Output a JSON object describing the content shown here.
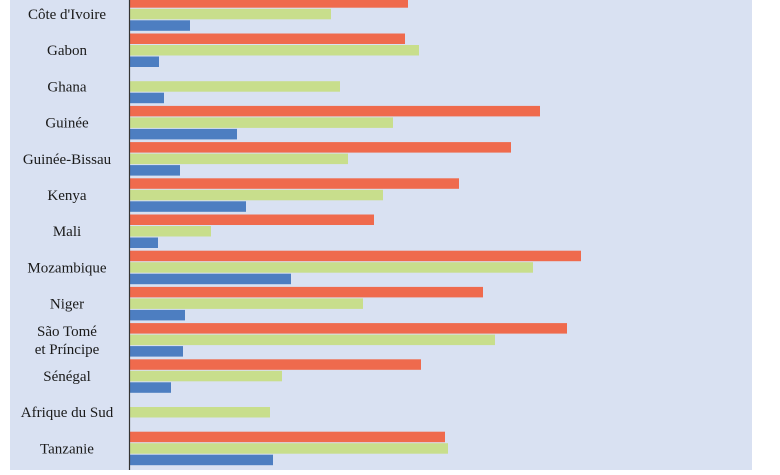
{
  "chart_data": {
    "type": "bar",
    "orientation": "horizontal",
    "categories": [
      [
        "Côte d'Ivoire"
      ],
      [
        "Gabon"
      ],
      [
        "Ghana"
      ],
      [
        "Guinée"
      ],
      [
        "Guinée-Bissau"
      ],
      [
        "Kenya"
      ],
      [
        "Mali"
      ],
      [
        "Mozambique"
      ],
      [
        "Niger"
      ],
      [
        "São Tomé",
        "et Príncipe"
      ],
      [
        "Sénégal"
      ],
      [
        "Afrique du Sud"
      ],
      [
        "Tanzanie"
      ]
    ],
    "series": [
      {
        "color": "#ef6a4d",
        "values": [
          278,
          275,
          null,
          410,
          381,
          329,
          244,
          451,
          353,
          437,
          291,
          null,
          315
        ]
      },
      {
        "color": "#c8de8c",
        "values": [
          201,
          289,
          210,
          263,
          218,
          253,
          81,
          403,
          233,
          365,
          152,
          140,
          318
        ]
      },
      {
        "color": "#4d7ec1",
        "values": [
          60,
          29,
          34,
          107,
          50,
          116,
          28,
          161,
          55,
          53,
          41,
          null,
          143
        ]
      }
    ],
    "xlim": [
      0,
      622
    ],
    "grid": false,
    "colors": {
      "plot_background": "#d9e1f2",
      "axis": "#333333"
    }
  }
}
